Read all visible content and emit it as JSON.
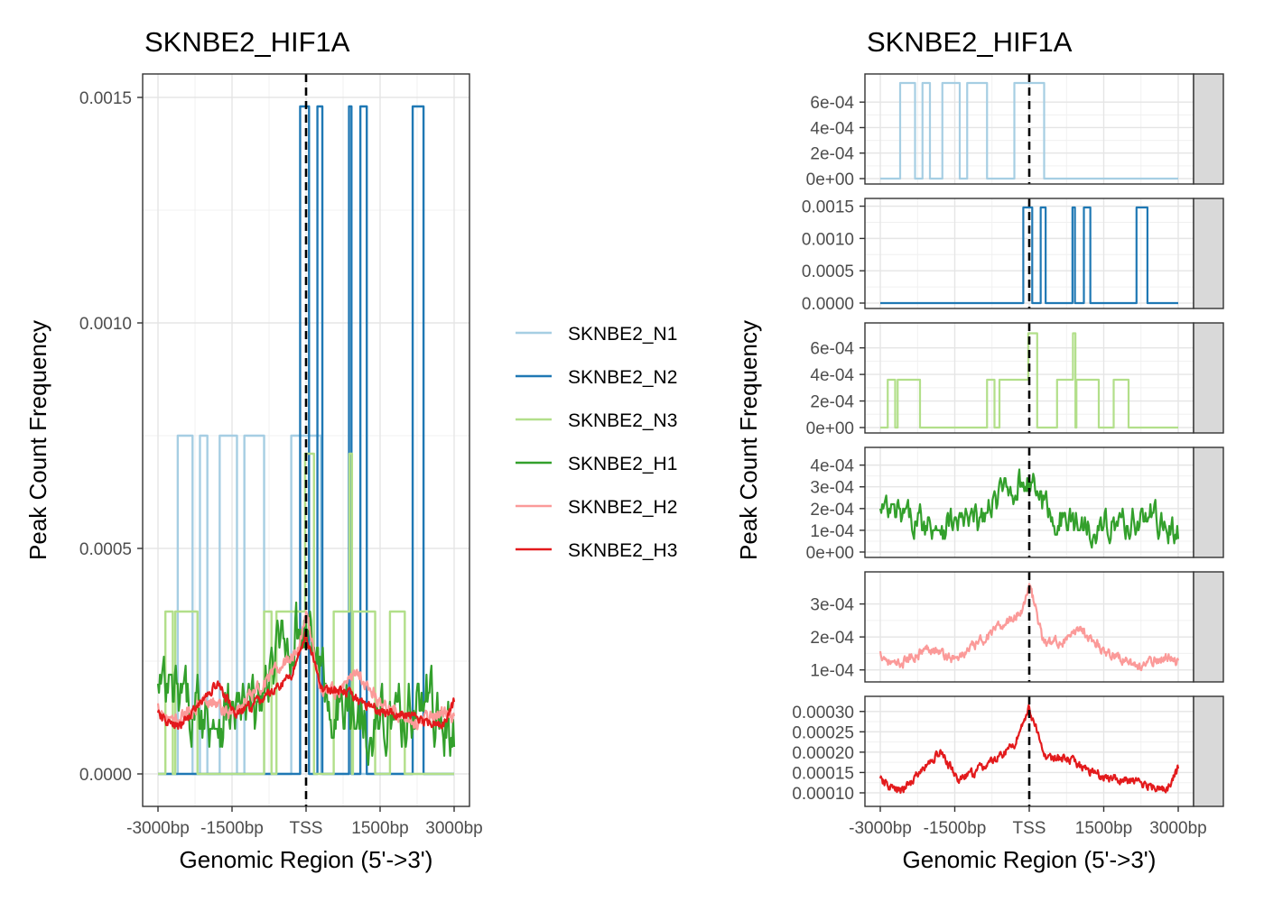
{
  "chart_data": [
    {
      "type": "line",
      "title": "SKNBE2_HIF1A",
      "xlabel": "Genomic Region (5'->3')",
      "ylabel": "Peak Count Frequency",
      "x_range": [
        -3000,
        3000
      ],
      "ylim": [
        0,
        0.0015
      ],
      "x_ticks": [
        {
          "value": -3000,
          "label": "-3000bp"
        },
        {
          "value": -1500,
          "label": "-1500bp"
        },
        {
          "value": 0,
          "label": "TSS"
        },
        {
          "value": 1500,
          "label": "1500bp"
        },
        {
          "value": 3000,
          "label": "3000bp"
        }
      ],
      "y_ticks": [
        {
          "value": 0,
          "label": "0.0000"
        },
        {
          "value": 0.0005,
          "label": "0.0005"
        },
        {
          "value": 0.001,
          "label": "0.0010"
        },
        {
          "value": 0.0015,
          "label": "0.0015"
        }
      ],
      "tss_line": 0,
      "grid": true,
      "legend_placement": "right"
    },
    {
      "type": "line",
      "title": "SKNBE2_HIF1A",
      "xlabel": "Genomic Region (5'->3')",
      "ylabel": "Peak Count Frequency",
      "x_range": [
        -3000,
        3000
      ],
      "x_ticks": [
        {
          "value": -3000,
          "label": "-3000bp"
        },
        {
          "value": -1500,
          "label": "-1500bp"
        },
        {
          "value": 0,
          "label": "TSS"
        },
        {
          "value": 1500,
          "label": "1500bp"
        },
        {
          "value": 3000,
          "label": "3000bp"
        }
      ],
      "tss_line": 0,
      "grid": true,
      "facets": [
        {
          "series": "SKNBE2_N1",
          "strip": "SKNBE2_N1",
          "ylim": [
            0,
            0.00075
          ],
          "y_ticks": [
            {
              "value": 0,
              "label": "0e+00"
            },
            {
              "value": 0.0002,
              "label": "2e-04"
            },
            {
              "value": 0.0004,
              "label": "4e-04"
            },
            {
              "value": 0.0006,
              "label": "6e-04"
            }
          ]
        },
        {
          "series": "SKNBE2_N2",
          "strip": "SKNBE2_N2",
          "ylim": [
            0,
            0.00148
          ],
          "y_ticks": [
            {
              "value": 0,
              "label": "0.0000"
            },
            {
              "value": 0.0005,
              "label": "0.0005"
            },
            {
              "value": 0.001,
              "label": "0.0010"
            },
            {
              "value": 0.0015,
              "label": "0.0015"
            }
          ]
        },
        {
          "series": "SKNBE2_N3",
          "strip": "SKNBE2_N3",
          "ylim": [
            0,
            0.00072
          ],
          "y_ticks": [
            {
              "value": 0,
              "label": "0e+00"
            },
            {
              "value": 0.0002,
              "label": "2e-04"
            },
            {
              "value": 0.0004,
              "label": "4e-04"
            },
            {
              "value": 0.0006,
              "label": "6e-04"
            }
          ]
        },
        {
          "series": "SKNBE2_H1",
          "strip": "SKNBE2_H1",
          "ylim": [
            0,
            0.00044
          ],
          "y_ticks": [
            {
              "value": 0,
              "label": "0e+00"
            },
            {
              "value": 0.0001,
              "label": "1e-04"
            },
            {
              "value": 0.0002,
              "label": "2e-04"
            },
            {
              "value": 0.0003,
              "label": "3e-04"
            },
            {
              "value": 0.0004,
              "label": "4e-04"
            }
          ]
        },
        {
          "series": "SKNBE2_H2",
          "strip": "SKNBE2_H2",
          "ylim": [
            8e-05,
            0.00037
          ],
          "y_ticks": [
            {
              "value": 0.0001,
              "label": "1e-04"
            },
            {
              "value": 0.0002,
              "label": "2e-04"
            },
            {
              "value": 0.0003,
              "label": "3e-04"
            }
          ]
        },
        {
          "series": "SKNBE2_H3",
          "strip": "SKNBE2_H3",
          "ylim": [
            8e-05,
            0.000315
          ],
          "y_ticks": [
            {
              "value": 0.0001,
              "label": "0.00010"
            },
            {
              "value": 0.00015,
              "label": "0.00015"
            },
            {
              "value": 0.0002,
              "label": "0.00020"
            },
            {
              "value": 0.00025,
              "label": "0.00025"
            },
            {
              "value": 0.0003,
              "label": "0.00030"
            }
          ]
        }
      ]
    }
  ],
  "series": [
    {
      "name": "SKNBE2_N1",
      "color": "#a6cee3",
      "kind": "step",
      "base": 0,
      "blocks": [
        {
          "start": -2600,
          "end": -2300,
          "value": 0.00075
        },
        {
          "start": -2150,
          "end": -2000,
          "value": 0.00075
        },
        {
          "start": -1750,
          "end": -1400,
          "value": 0.00075
        },
        {
          "start": -1250,
          "end": -850,
          "value": 0.00075
        },
        {
          "start": -300,
          "end": 300,
          "value": 0.00075
        }
      ]
    },
    {
      "name": "SKNBE2_N2",
      "color": "#1f78b4",
      "kind": "step",
      "base": 0,
      "blocks": [
        {
          "start": -120,
          "end": 60,
          "value": 0.00148
        },
        {
          "start": 230,
          "end": 330,
          "value": 0.00148
        },
        {
          "start": 870,
          "end": 920,
          "value": 0.00148
        },
        {
          "start": 1100,
          "end": 1230,
          "value": 0.00148
        },
        {
          "start": 2160,
          "end": 2380,
          "value": 0.00148
        }
      ]
    },
    {
      "name": "SKNBE2_N3",
      "color": "#b2df8a",
      "kind": "step",
      "base": 0,
      "blocks": [
        {
          "start": -2850,
          "end": -2700,
          "value": 0.00036
        },
        {
          "start": -2650,
          "end": -2200,
          "value": 0.00036
        },
        {
          "start": -850,
          "end": -700,
          "value": 0.00036
        },
        {
          "start": -600,
          "end": 50,
          "value": 0.00036
        },
        {
          "start": -20,
          "end": 160,
          "value": 0.00071
        },
        {
          "start": 560,
          "end": 900,
          "value": 0.00036
        },
        {
          "start": 880,
          "end": 930,
          "value": 0.00071
        },
        {
          "start": 950,
          "end": 1400,
          "value": 0.00036
        },
        {
          "start": 1700,
          "end": 1850,
          "value": 0.00036
        },
        {
          "start": 1850,
          "end": 2000,
          "value": 0.00036
        }
      ]
    },
    {
      "name": "SKNBE2_H1",
      "color": "#33a02c",
      "kind": "noisy",
      "profile": [
        [
          -3000,
          0.00018
        ],
        [
          -2000,
          0.00013
        ],
        [
          -1000,
          0.00014
        ],
        [
          -500,
          0.00028
        ],
        [
          0,
          0.00034
        ],
        [
          500,
          0.00015
        ],
        [
          1500,
          0.00012
        ],
        [
          2500,
          0.00016
        ],
        [
          3000,
          8e-05
        ]
      ],
      "noise": 6e-05
    },
    {
      "name": "SKNBE2_H2",
      "color": "#fb9a99",
      "kind": "noisy",
      "profile": [
        [
          -3000,
          0.00015
        ],
        [
          -2700,
          0.00011
        ],
        [
          -2000,
          0.00017
        ],
        [
          -1500,
          0.00013
        ],
        [
          -500,
          0.00024
        ],
        [
          -150,
          0.00028
        ],
        [
          0,
          0.00036
        ],
        [
          300,
          0.00018
        ],
        [
          800,
          0.00019
        ],
        [
          1000,
          0.00023
        ],
        [
          1500,
          0.00016
        ],
        [
          2200,
          0.00011
        ],
        [
          2800,
          0.00014
        ],
        [
          3000,
          0.00012
        ]
      ],
      "noise": 1.2e-05
    },
    {
      "name": "SKNBE2_H3",
      "color": "#e31a1c",
      "kind": "noisy",
      "profile": [
        [
          -3000,
          0.00013
        ],
        [
          -2600,
          0.0001
        ],
        [
          -1800,
          0.0002
        ],
        [
          -1400,
          0.00013
        ],
        [
          -700,
          0.00018
        ],
        [
          -300,
          0.00022
        ],
        [
          0,
          0.00031
        ],
        [
          300,
          0.00019
        ],
        [
          800,
          0.00018
        ],
        [
          1500,
          0.00014
        ],
        [
          2400,
          0.00012
        ],
        [
          2800,
          0.00011
        ],
        [
          3000,
          0.00016
        ]
      ],
      "noise": 9e-06
    }
  ]
}
